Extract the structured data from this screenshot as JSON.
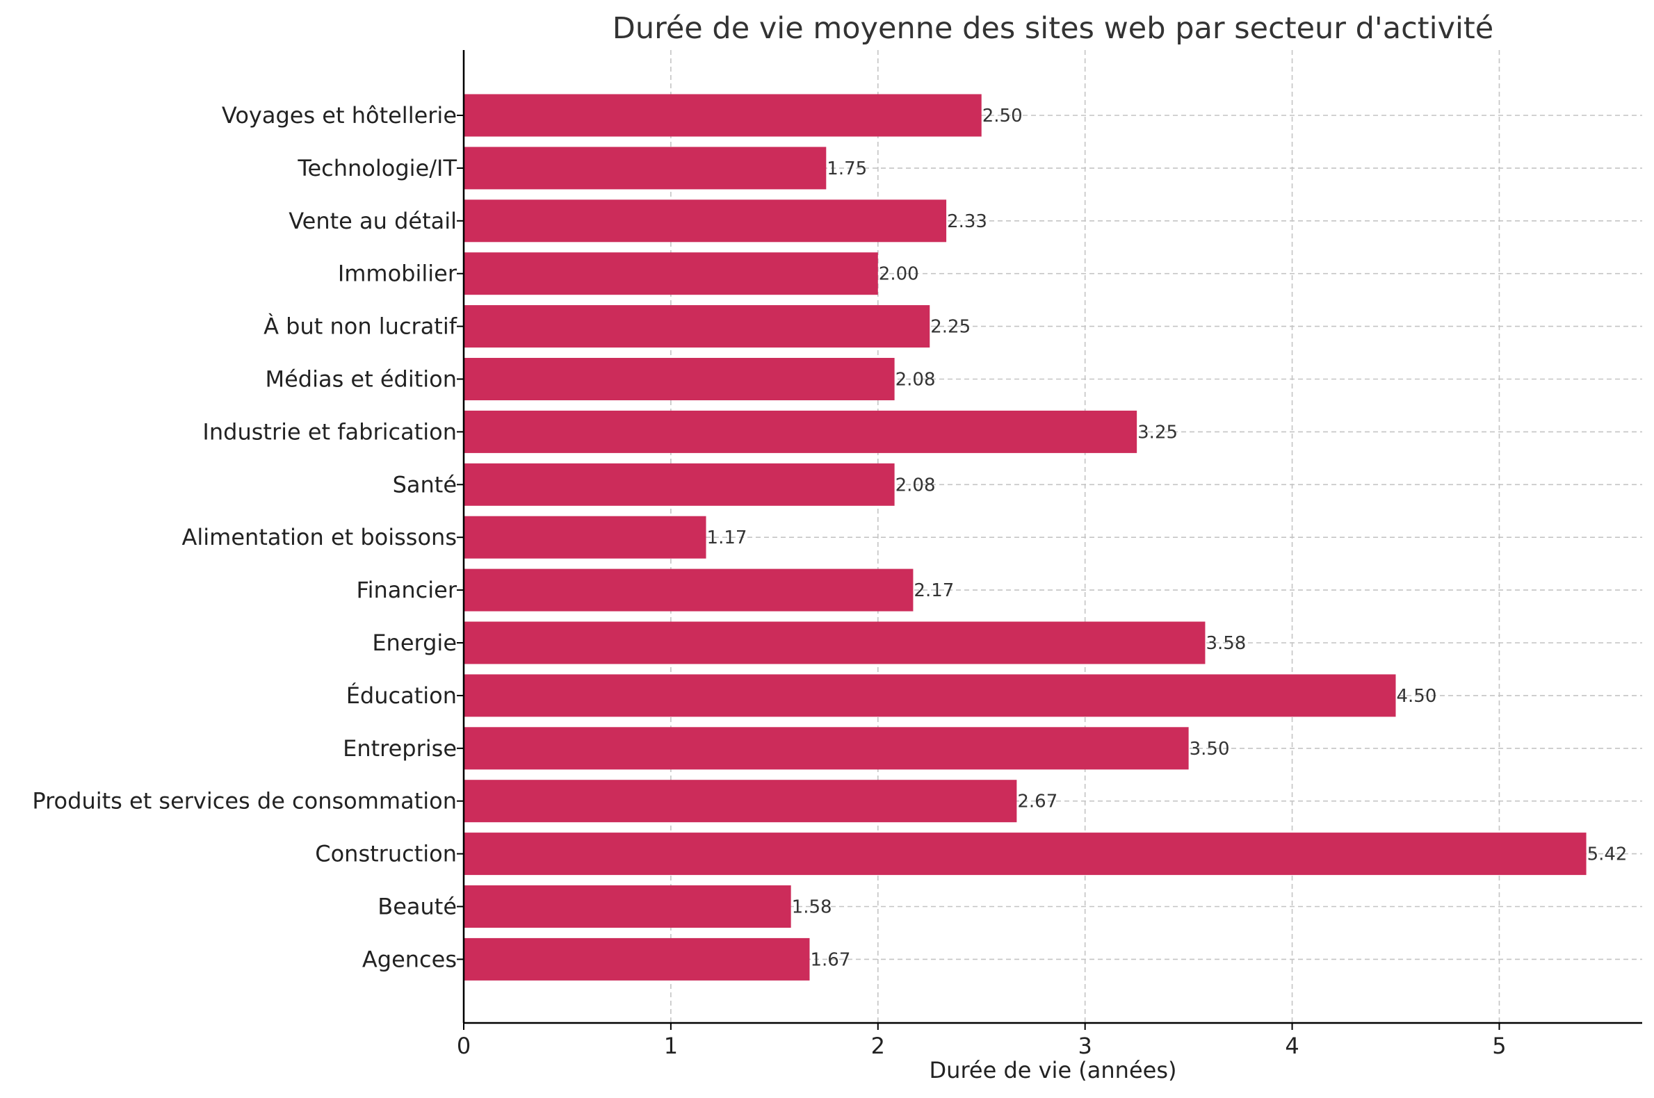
{
  "chart_data": {
    "type": "bar",
    "orientation": "horizontal",
    "title": "Durée de vie moyenne des sites web par secteur d'activité",
    "xlabel": "Durée de vie (années)",
    "ylabel": "",
    "xlim": [
      0,
      5.69
    ],
    "xticks": [
      "0",
      "1",
      "2",
      "3",
      "4",
      "5"
    ],
    "grid": true,
    "bar_color": "#cc2c5a",
    "categories": [
      "Agences",
      "Beauté",
      "Construction",
      "Produits et services de consommation",
      "Entreprise",
      "Éducation",
      "Energie",
      "Financier",
      "Alimentation et boissons",
      "Santé",
      "Industrie et fabrication",
      "Médias et édition",
      "À but non lucratif",
      "Immobilier",
      "Vente au détail",
      "Technologie/IT",
      "Voyages et hôtellerie"
    ],
    "values": [
      1.67,
      1.58,
      5.42,
      2.67,
      3.5,
      4.5,
      3.58,
      2.17,
      1.17,
      2.08,
      3.25,
      2.08,
      2.25,
      2.0,
      2.33,
      1.75,
      2.5
    ],
    "value_labels": [
      "1.67",
      "1.58",
      "5.42",
      "2.67",
      "3.50",
      "4.50",
      "3.58",
      "2.17",
      "1.17",
      "2.08",
      "3.25",
      "2.08",
      "2.25",
      "2.00",
      "2.33",
      "1.75",
      "2.50"
    ]
  }
}
